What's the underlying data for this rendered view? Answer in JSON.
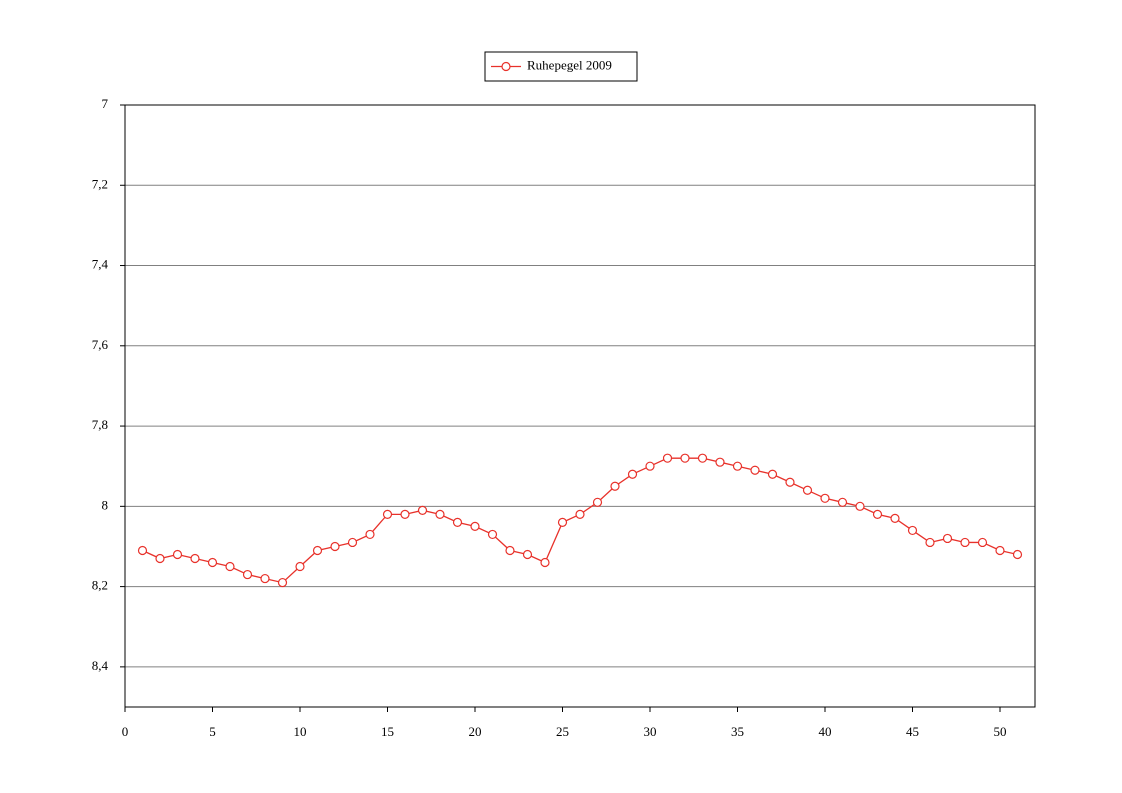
{
  "chart_data": {
    "type": "line",
    "x": [
      1,
      2,
      3,
      4,
      5,
      6,
      7,
      8,
      9,
      10,
      11,
      12,
      13,
      14,
      15,
      16,
      17,
      18,
      19,
      20,
      21,
      22,
      23,
      24,
      25,
      26,
      27,
      28,
      29,
      30,
      31,
      32,
      33,
      34,
      35,
      36,
      37,
      38,
      39,
      40,
      41,
      42,
      43,
      44,
      45,
      46,
      47,
      48,
      49,
      50,
      51
    ],
    "series": [
      {
        "name": "Ruhepegel 2009",
        "color": "#e8312a",
        "values": [
          8.11,
          8.13,
          8.12,
          8.13,
          8.14,
          8.15,
          8.17,
          8.18,
          8.19,
          8.15,
          8.11,
          8.1,
          8.09,
          8.07,
          8.02,
          8.02,
          8.01,
          8.02,
          8.04,
          8.05,
          8.07,
          8.11,
          8.12,
          8.14,
          8.04,
          8.02,
          7.99,
          7.95,
          7.92,
          7.9,
          7.88,
          7.88,
          7.88,
          7.89,
          7.9,
          7.91,
          7.92,
          7.94,
          7.96,
          7.98,
          7.99,
          8.0,
          8.02,
          8.03,
          8.06,
          8.09,
          8.08,
          8.09,
          8.09,
          8.11,
          8.12
        ]
      }
    ],
    "xlim": [
      0,
      52
    ],
    "xticks": [
      0,
      5,
      10,
      15,
      20,
      25,
      30,
      35,
      40,
      45,
      50
    ],
    "ylim": [
      8.5,
      7
    ],
    "yticks": [
      7,
      {
        "value": 7.2,
        "label": "7,2"
      },
      {
        "value": 7.4,
        "label": "7,4"
      },
      {
        "value": 7.6,
        "label": "7,6"
      },
      {
        "value": 7.8,
        "label": "7,8"
      },
      8,
      {
        "value": 8.2,
        "label": "8,2"
      },
      {
        "value": 8.4,
        "label": "8,4"
      }
    ],
    "grid": true,
    "legend": "top"
  }
}
